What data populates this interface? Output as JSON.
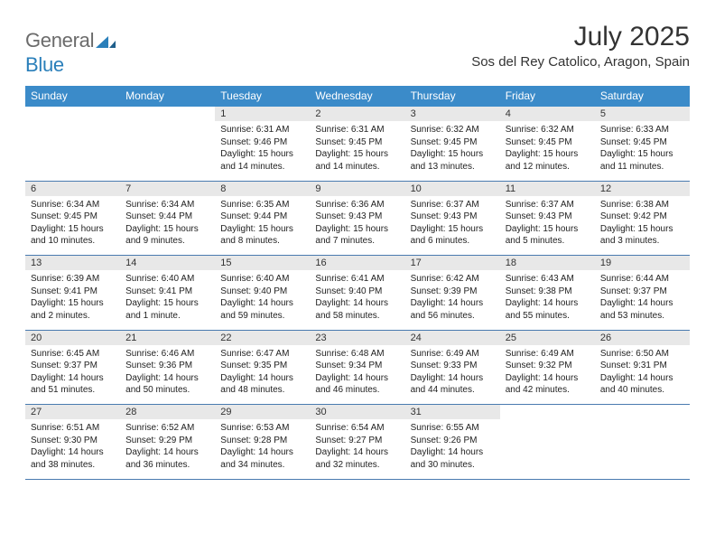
{
  "logo": {
    "text1": "General",
    "text2": "Blue"
  },
  "title": "July 2025",
  "location": "Sos del Rey Catolico, Aragon, Spain",
  "colors": {
    "header_bg": "#3b8bc9",
    "header_text": "#ffffff",
    "daynum_bg": "#e8e8e8",
    "rule": "#4a7bb0",
    "logo_gray": "#6b6b6b",
    "logo_blue": "#2a7fba",
    "text": "#333333"
  },
  "weekdays": [
    "Sunday",
    "Monday",
    "Tuesday",
    "Wednesday",
    "Thursday",
    "Friday",
    "Saturday"
  ],
  "first_weekday_index": 2,
  "days": [
    {
      "n": 1,
      "sunrise": "6:31 AM",
      "sunset": "9:46 PM",
      "daylight": "15 hours and 14 minutes."
    },
    {
      "n": 2,
      "sunrise": "6:31 AM",
      "sunset": "9:45 PM",
      "daylight": "15 hours and 14 minutes."
    },
    {
      "n": 3,
      "sunrise": "6:32 AM",
      "sunset": "9:45 PM",
      "daylight": "15 hours and 13 minutes."
    },
    {
      "n": 4,
      "sunrise": "6:32 AM",
      "sunset": "9:45 PM",
      "daylight": "15 hours and 12 minutes."
    },
    {
      "n": 5,
      "sunrise": "6:33 AM",
      "sunset": "9:45 PM",
      "daylight": "15 hours and 11 minutes."
    },
    {
      "n": 6,
      "sunrise": "6:34 AM",
      "sunset": "9:45 PM",
      "daylight": "15 hours and 10 minutes."
    },
    {
      "n": 7,
      "sunrise": "6:34 AM",
      "sunset": "9:44 PM",
      "daylight": "15 hours and 9 minutes."
    },
    {
      "n": 8,
      "sunrise": "6:35 AM",
      "sunset": "9:44 PM",
      "daylight": "15 hours and 8 minutes."
    },
    {
      "n": 9,
      "sunrise": "6:36 AM",
      "sunset": "9:43 PM",
      "daylight": "15 hours and 7 minutes."
    },
    {
      "n": 10,
      "sunrise": "6:37 AM",
      "sunset": "9:43 PM",
      "daylight": "15 hours and 6 minutes."
    },
    {
      "n": 11,
      "sunrise": "6:37 AM",
      "sunset": "9:43 PM",
      "daylight": "15 hours and 5 minutes."
    },
    {
      "n": 12,
      "sunrise": "6:38 AM",
      "sunset": "9:42 PM",
      "daylight": "15 hours and 3 minutes."
    },
    {
      "n": 13,
      "sunrise": "6:39 AM",
      "sunset": "9:41 PM",
      "daylight": "15 hours and 2 minutes."
    },
    {
      "n": 14,
      "sunrise": "6:40 AM",
      "sunset": "9:41 PM",
      "daylight": "15 hours and 1 minute."
    },
    {
      "n": 15,
      "sunrise": "6:40 AM",
      "sunset": "9:40 PM",
      "daylight": "14 hours and 59 minutes."
    },
    {
      "n": 16,
      "sunrise": "6:41 AM",
      "sunset": "9:40 PM",
      "daylight": "14 hours and 58 minutes."
    },
    {
      "n": 17,
      "sunrise": "6:42 AM",
      "sunset": "9:39 PM",
      "daylight": "14 hours and 56 minutes."
    },
    {
      "n": 18,
      "sunrise": "6:43 AM",
      "sunset": "9:38 PM",
      "daylight": "14 hours and 55 minutes."
    },
    {
      "n": 19,
      "sunrise": "6:44 AM",
      "sunset": "9:37 PM",
      "daylight": "14 hours and 53 minutes."
    },
    {
      "n": 20,
      "sunrise": "6:45 AM",
      "sunset": "9:37 PM",
      "daylight": "14 hours and 51 minutes."
    },
    {
      "n": 21,
      "sunrise": "6:46 AM",
      "sunset": "9:36 PM",
      "daylight": "14 hours and 50 minutes."
    },
    {
      "n": 22,
      "sunrise": "6:47 AM",
      "sunset": "9:35 PM",
      "daylight": "14 hours and 48 minutes."
    },
    {
      "n": 23,
      "sunrise": "6:48 AM",
      "sunset": "9:34 PM",
      "daylight": "14 hours and 46 minutes."
    },
    {
      "n": 24,
      "sunrise": "6:49 AM",
      "sunset": "9:33 PM",
      "daylight": "14 hours and 44 minutes."
    },
    {
      "n": 25,
      "sunrise": "6:49 AM",
      "sunset": "9:32 PM",
      "daylight": "14 hours and 42 minutes."
    },
    {
      "n": 26,
      "sunrise": "6:50 AM",
      "sunset": "9:31 PM",
      "daylight": "14 hours and 40 minutes."
    },
    {
      "n": 27,
      "sunrise": "6:51 AM",
      "sunset": "9:30 PM",
      "daylight": "14 hours and 38 minutes."
    },
    {
      "n": 28,
      "sunrise": "6:52 AM",
      "sunset": "9:29 PM",
      "daylight": "14 hours and 36 minutes."
    },
    {
      "n": 29,
      "sunrise": "6:53 AM",
      "sunset": "9:28 PM",
      "daylight": "14 hours and 34 minutes."
    },
    {
      "n": 30,
      "sunrise": "6:54 AM",
      "sunset": "9:27 PM",
      "daylight": "14 hours and 32 minutes."
    },
    {
      "n": 31,
      "sunrise": "6:55 AM",
      "sunset": "9:26 PM",
      "daylight": "14 hours and 30 minutes."
    }
  ],
  "labels": {
    "sunrise": "Sunrise:",
    "sunset": "Sunset:",
    "daylight": "Daylight:"
  }
}
